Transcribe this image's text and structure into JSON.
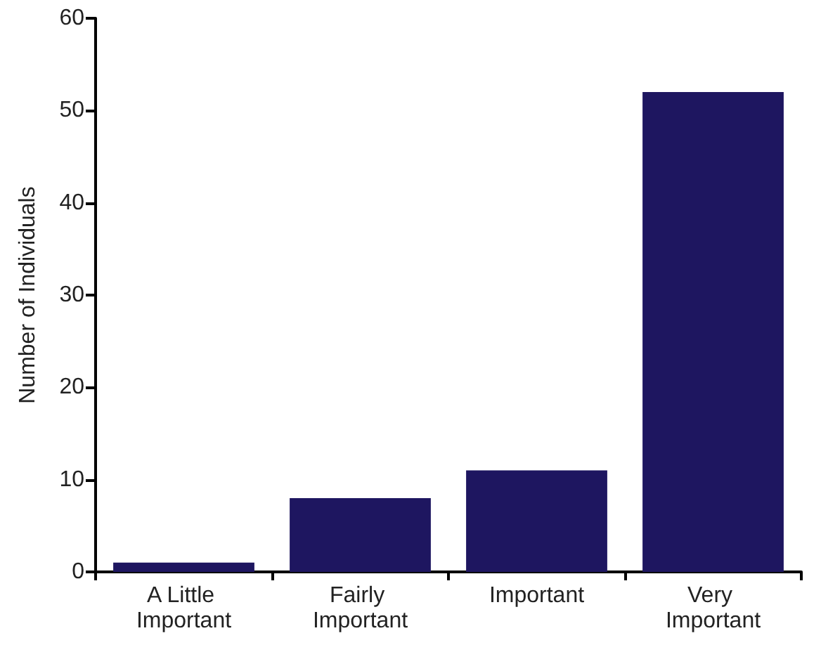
{
  "chart_data": {
    "type": "bar",
    "ylabel": "Number of Individuals",
    "categories": [
      "A Little Important",
      "Fairly Important",
      "Important",
      "Very Important"
    ],
    "values": [
      1,
      8,
      11,
      52
    ],
    "color": "#1e1660",
    "ylim": [
      0,
      60
    ],
    "yticks": [
      0,
      10,
      20,
      30,
      40,
      50,
      60
    ],
    "grid": false
  }
}
